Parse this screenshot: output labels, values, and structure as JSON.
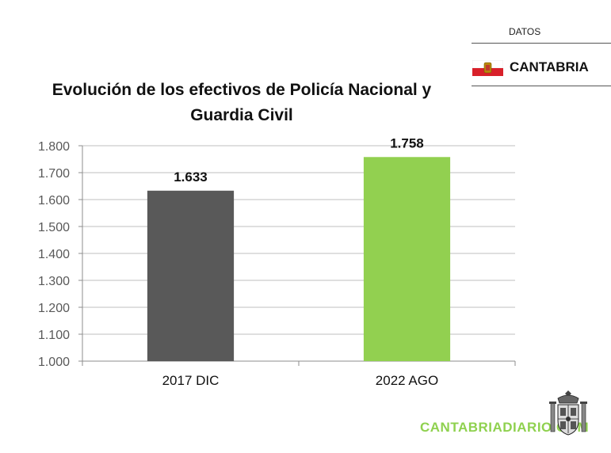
{
  "header": {
    "label": "DATOS",
    "region": "CANTABRIA",
    "flag_colors": {
      "top": "#ffffff",
      "bottom": "#d8202a"
    }
  },
  "watermark": {
    "text": "CANTABRIADIARIO.COM",
    "color": "#8fd14f"
  },
  "emblem": {
    "icon": "coat-of-arms-spain-icon"
  },
  "chart_data": {
    "type": "bar",
    "title": "Evolución de los efectivos de Policía Nacional y Guardia Civil",
    "title_lines": [
      "Evolución de los efectivos de Policía Nacional y",
      "Guardia Civil"
    ],
    "categories": [
      "2017 DIC",
      "2022 AGO"
    ],
    "values": [
      1633,
      1758
    ],
    "value_labels": [
      "1.633",
      "1.758"
    ],
    "bar_colors": [
      "#595959",
      "#92d050"
    ],
    "ylim": [
      1000,
      1800
    ],
    "yticks": [
      1000,
      1100,
      1200,
      1300,
      1400,
      1500,
      1600,
      1700,
      1800
    ],
    "ytick_labels": [
      "1.000",
      "1.100",
      "1.200",
      "1.300",
      "1.400",
      "1.500",
      "1.600",
      "1.700",
      "1.800"
    ],
    "grid": true,
    "legend": "none"
  }
}
